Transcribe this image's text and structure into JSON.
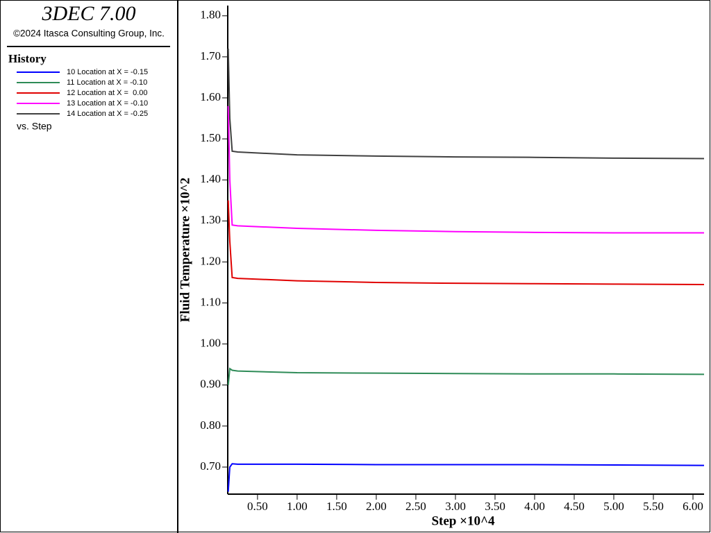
{
  "chart_data": {
    "type": "line",
    "title": "3DEC 7.00",
    "subtitle": "©2024 Itasca Consulting Group, Inc.",
    "legend_title": "History",
    "legend_footer": "vs. Step",
    "legend": "left-panel",
    "x_label": "Step ×10^4",
    "y_label": "Fluid Temperature ×10^2",
    "x": [
      0.13,
      0.15,
      0.18,
      0.25,
      1.0,
      2.0,
      3.0,
      4.0,
      5.0,
      6.14
    ],
    "series": [
      {
        "name": "10 Location at X = -0.15",
        "color": "#0000ff",
        "values": [
          0.64,
          0.7,
          0.708,
          0.707,
          0.707,
          0.706,
          0.706,
          0.706,
          0.705,
          0.704
        ]
      },
      {
        "name": "11 Location at X = -0.10",
        "color": "#2e8b57",
        "values": [
          0.9,
          0.94,
          0.936,
          0.934,
          0.93,
          0.929,
          0.928,
          0.927,
          0.927,
          0.926
        ]
      },
      {
        "name": "12 Location at X =  0.00",
        "color": "#e00000",
        "values": [
          1.35,
          1.25,
          1.162,
          1.16,
          1.154,
          1.15,
          1.148,
          1.147,
          1.146,
          1.145
        ]
      },
      {
        "name": "13 Location at X = -0.10",
        "color": "#ff00ff",
        "values": [
          1.58,
          1.4,
          1.29,
          1.288,
          1.282,
          1.277,
          1.274,
          1.272,
          1.271,
          1.271
        ]
      },
      {
        "name": "14 Location at X = -0.25",
        "color": "#404040",
        "values": [
          1.72,
          1.55,
          1.47,
          1.468,
          1.461,
          1.458,
          1.456,
          1.455,
          1.453,
          1.452
        ]
      }
    ],
    "xlim": [
      0.124,
      6.14
    ],
    "ylim": [
      0.634,
      1.825
    ],
    "xticks": [
      {
        "value": 0.5,
        "label": "0.50"
      },
      {
        "value": 1.0,
        "label": "1.00"
      },
      {
        "value": 1.5,
        "label": "1.50"
      },
      {
        "value": 2.0,
        "label": "2.00"
      },
      {
        "value": 2.5,
        "label": "2.50"
      },
      {
        "value": 3.0,
        "label": "3.00"
      },
      {
        "value": 3.5,
        "label": "3.50"
      },
      {
        "value": 4.0,
        "label": "4.00"
      },
      {
        "value": 4.5,
        "label": "4.50"
      },
      {
        "value": 5.0,
        "label": "5.00"
      },
      {
        "value": 5.5,
        "label": "5.50"
      },
      {
        "value": 6.0,
        "label": "6.00"
      }
    ],
    "yticks": [
      {
        "value": 0.7,
        "label": "0.70"
      },
      {
        "value": 0.8,
        "label": "0.80"
      },
      {
        "value": 0.9,
        "label": "0.90"
      },
      {
        "value": 1.0,
        "label": "1.00"
      },
      {
        "value": 1.1,
        "label": "1.10"
      },
      {
        "value": 1.2,
        "label": "1.20"
      },
      {
        "value": 1.3,
        "label": "1.30"
      },
      {
        "value": 1.4,
        "label": "1.40"
      },
      {
        "value": 1.5,
        "label": "1.50"
      },
      {
        "value": 1.6,
        "label": "1.60"
      },
      {
        "value": 1.7,
        "label": "1.70"
      },
      {
        "value": 1.8,
        "label": "1.80"
      }
    ],
    "grid": false
  }
}
